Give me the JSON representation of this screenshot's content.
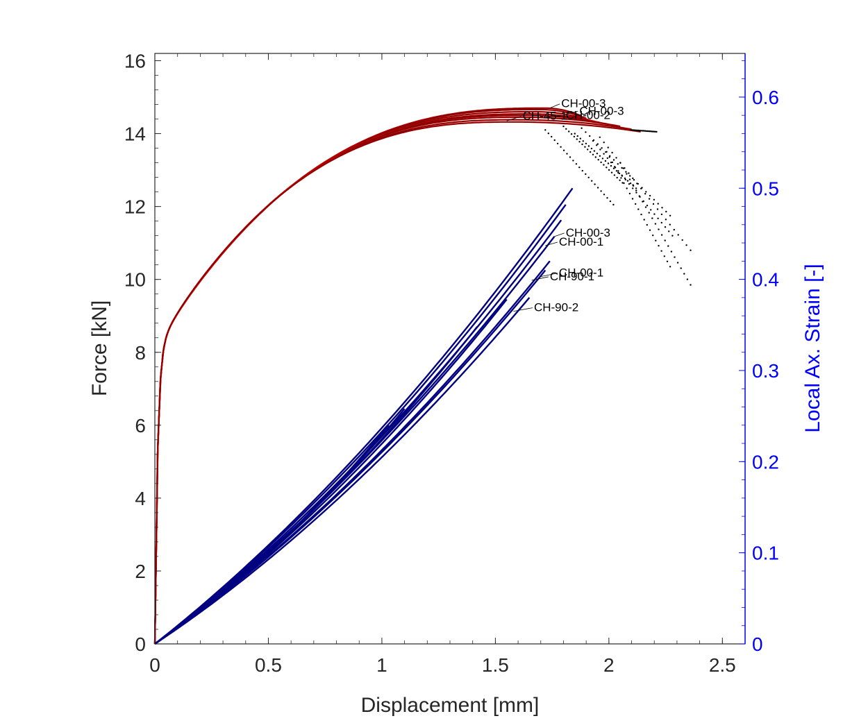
{
  "chart_data": {
    "type": "line",
    "title": "",
    "xlabel": "Displacement [mm]",
    "ylabel": "Force [kN]",
    "y2label": "Local Ax. Strain [-]",
    "xlim": [
      0,
      2.6
    ],
    "ylim": [
      0,
      16.2
    ],
    "y2lim": [
      0,
      0.6479
    ],
    "xticks": [
      "0",
      "0.5",
      "1",
      "1.5",
      "2",
      "2.5"
    ],
    "xtick_values": [
      0,
      0.5,
      1,
      1.5,
      2,
      2.5
    ],
    "yticks": [
      "0",
      "2",
      "4",
      "6",
      "8",
      "10",
      "12",
      "14",
      "16"
    ],
    "ytick_values": [
      0,
      2,
      4,
      6,
      8,
      10,
      12,
      14,
      16
    ],
    "y2ticks": [
      "0",
      "0.1",
      "0.2",
      "0.3",
      "0.4",
      "0.5",
      "0.6"
    ],
    "y2tick_values": [
      0,
      0.1,
      0.2,
      0.3,
      0.4,
      0.5,
      0.6
    ],
    "grid": false,
    "legend": "none",
    "colors": {
      "force_curves": "#c00000",
      "strain_curves": "#000080",
      "post_peak_markers": "#000000",
      "left_axis": "#262626",
      "right_axis": "#0000ff"
    },
    "force_series": [
      {
        "peak_x": 1.72,
        "peak_y": 14.7,
        "end_x": 1.88,
        "end_y": 14.48
      },
      {
        "peak_x": 1.7,
        "peak_y": 14.66,
        "end_x": 1.9,
        "end_y": 14.42
      },
      {
        "peak_x": 1.68,
        "peak_y": 14.6,
        "end_x": 1.92,
        "end_y": 14.36
      },
      {
        "peak_x": 1.66,
        "peak_y": 14.54,
        "end_x": 1.96,
        "end_y": 14.3
      },
      {
        "peak_x": 1.64,
        "peak_y": 14.5,
        "end_x": 2.0,
        "end_y": 14.25
      },
      {
        "peak_x": 1.62,
        "peak_y": 14.45,
        "end_x": 2.05,
        "end_y": 14.2
      },
      {
        "peak_x": 1.6,
        "peak_y": 14.38,
        "end_x": 2.1,
        "end_y": 14.12
      },
      {
        "peak_x": 1.58,
        "peak_y": 14.32,
        "end_x": 2.14,
        "end_y": 14.05
      }
    ],
    "post_peak_drops": [
      {
        "from": [
          1.72,
          14.1
        ],
        "to": [
          2.02,
          12.05
        ]
      },
      {
        "from": [
          1.8,
          14.2
        ],
        "to": [
          2.06,
          12.65
        ]
      },
      {
        "from": [
          1.85,
          14.0
        ],
        "to": [
          2.12,
          12.5
        ]
      },
      {
        "from": [
          1.88,
          14.15
        ],
        "to": [
          2.27,
          11.75
        ]
      },
      {
        "from": [
          1.93,
          13.8
        ],
        "to": [
          2.28,
          11.2
        ]
      },
      {
        "from": [
          1.96,
          13.9
        ],
        "to": [
          2.36,
          10.8
        ]
      },
      {
        "from": [
          1.99,
          13.5
        ],
        "to": [
          2.27,
          10.35
        ]
      },
      {
        "from": [
          2.05,
          13.2
        ],
        "to": [
          2.36,
          9.85
        ]
      },
      {
        "from": [
          2.1,
          14.1
        ],
        "to": [
          2.21,
          14.05
        ]
      }
    ],
    "strain_series": [
      {
        "end_x": 1.84,
        "end_y": 0.5
      },
      {
        "end_x": 1.81,
        "end_y": 0.482
      },
      {
        "end_x": 1.79,
        "end_y": 0.465
      },
      {
        "end_x": 1.76,
        "end_y": 0.447
      },
      {
        "end_x": 1.74,
        "end_y": 0.42
      },
      {
        "end_x": 1.72,
        "end_y": 0.41
      },
      {
        "end_x": 1.65,
        "end_y": 0.38
      },
      {
        "end_x": 1.55,
        "end_y": 0.378
      },
      {
        "end_x": 1.42,
        "end_y": 0.348
      },
      {
        "end_x": 1.1,
        "end_y": 0.258
      },
      {
        "end_x": 1.03,
        "end_y": 0.24
      }
    ],
    "annotations": [
      {
        "text": "CH-00-3",
        "x": 1.81,
        "y2": 0.447,
        "arrow_to_x": 1.76,
        "arrow_to_y2": 0.447
      },
      {
        "text": "CH-00-1",
        "x": 1.78,
        "y2": 0.437,
        "arrow_to_x": 1.72,
        "arrow_to_y2": 0.437
      },
      {
        "text": "CH-00-1",
        "x": 1.78,
        "y2": 0.403,
        "arrow_to_x": 1.7,
        "arrow_to_y2": 0.403
      },
      {
        "text": "CH-90-1",
        "x": 1.74,
        "y2": 0.399,
        "arrow_to_x": 1.66,
        "arrow_to_y2": 0.399
      },
      {
        "text": "CH-90-2",
        "x": 1.67,
        "y2": 0.365,
        "arrow_to_x": 1.58,
        "arrow_to_y2": 0.365
      },
      {
        "text": "CH-00-3",
        "x": 1.79,
        "y": 14.72,
        "arrow_to_x": 1.74,
        "arrow_to_y": 14.7
      },
      {
        "text": "CH-00-3",
        "x": 1.87,
        "y": 14.52,
        "arrow_to_x": 1.82,
        "arrow_to_y": 14.55
      },
      {
        "text": "CH-00-2",
        "x": 1.81,
        "y": 14.4,
        "arrow_to_x": 1.72,
        "arrow_to_y": 14.45
      },
      {
        "text": "CH-45-1",
        "x": 1.62,
        "y": 14.38,
        "arrow_to_x": 1.55,
        "arrow_to_y": 14.35
      }
    ]
  }
}
